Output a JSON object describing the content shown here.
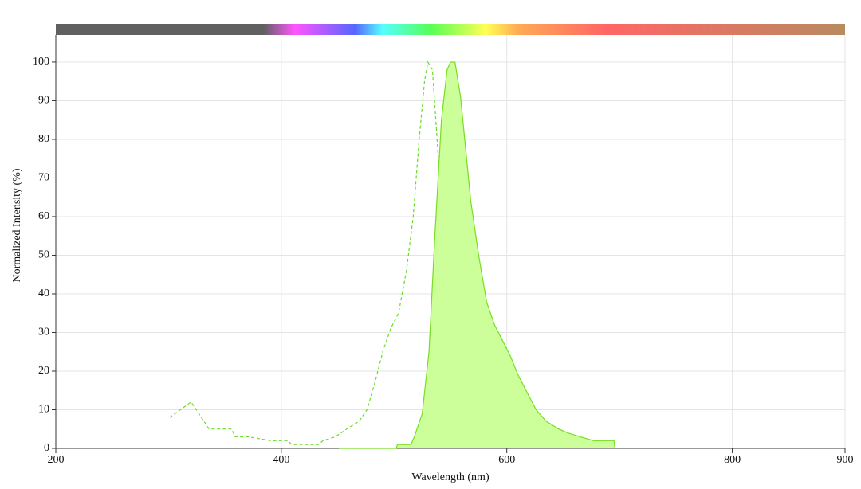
{
  "chart_data": {
    "type": "line",
    "x_label": "Wavelength (nm)",
    "y_label": "Normalized Intensity (%)",
    "xlim": [
      200,
      900
    ],
    "xticks": [
      200,
      400,
      600,
      800,
      900
    ],
    "ylim": [
      0,
      107
    ],
    "yticks": [
      0,
      10,
      20,
      30,
      40,
      50,
      60,
      70,
      80,
      90,
      100
    ],
    "grid": true,
    "series": [
      {
        "color": "#66dd22",
        "dashed": true,
        "x": [
          301,
          320,
          336,
          356,
          359,
          370,
          391,
          406,
          409,
          433,
          437,
          448,
          458,
          469,
          476,
          483,
          490,
          497,
          504,
          511,
          517,
          522,
          527,
          530,
          534,
          538,
          543,
          549,
          554,
          559,
          566,
          573
        ],
        "values": [
          8,
          12,
          5,
          5,
          3,
          3,
          2,
          2,
          1,
          1,
          2,
          3,
          5,
          7,
          10,
          17,
          25,
          31,
          35,
          46,
          60,
          79,
          95,
          100,
          98,
          81,
          56,
          32,
          17,
          7,
          3,
          1
        ]
      },
      {
        "color": "#77dd22",
        "fill": "#ccff99",
        "x": [
          451,
          502,
          503,
          515,
          518,
          525,
          531,
          536,
          542,
          547,
          550,
          554,
          559,
          568,
          575,
          582,
          589,
          596,
          603,
          610,
          617,
          626,
          635,
          646,
          654,
          665,
          677,
          695,
          696
        ],
        "values": [
          0,
          0,
          1,
          1,
          3,
          9,
          25,
          54,
          85,
          98,
          100,
          100,
          91,
          64,
          50,
          38,
          32,
          28,
          24,
          19,
          15,
          10,
          7,
          5,
          4,
          3,
          2,
          2,
          0
        ]
      }
    ]
  }
}
